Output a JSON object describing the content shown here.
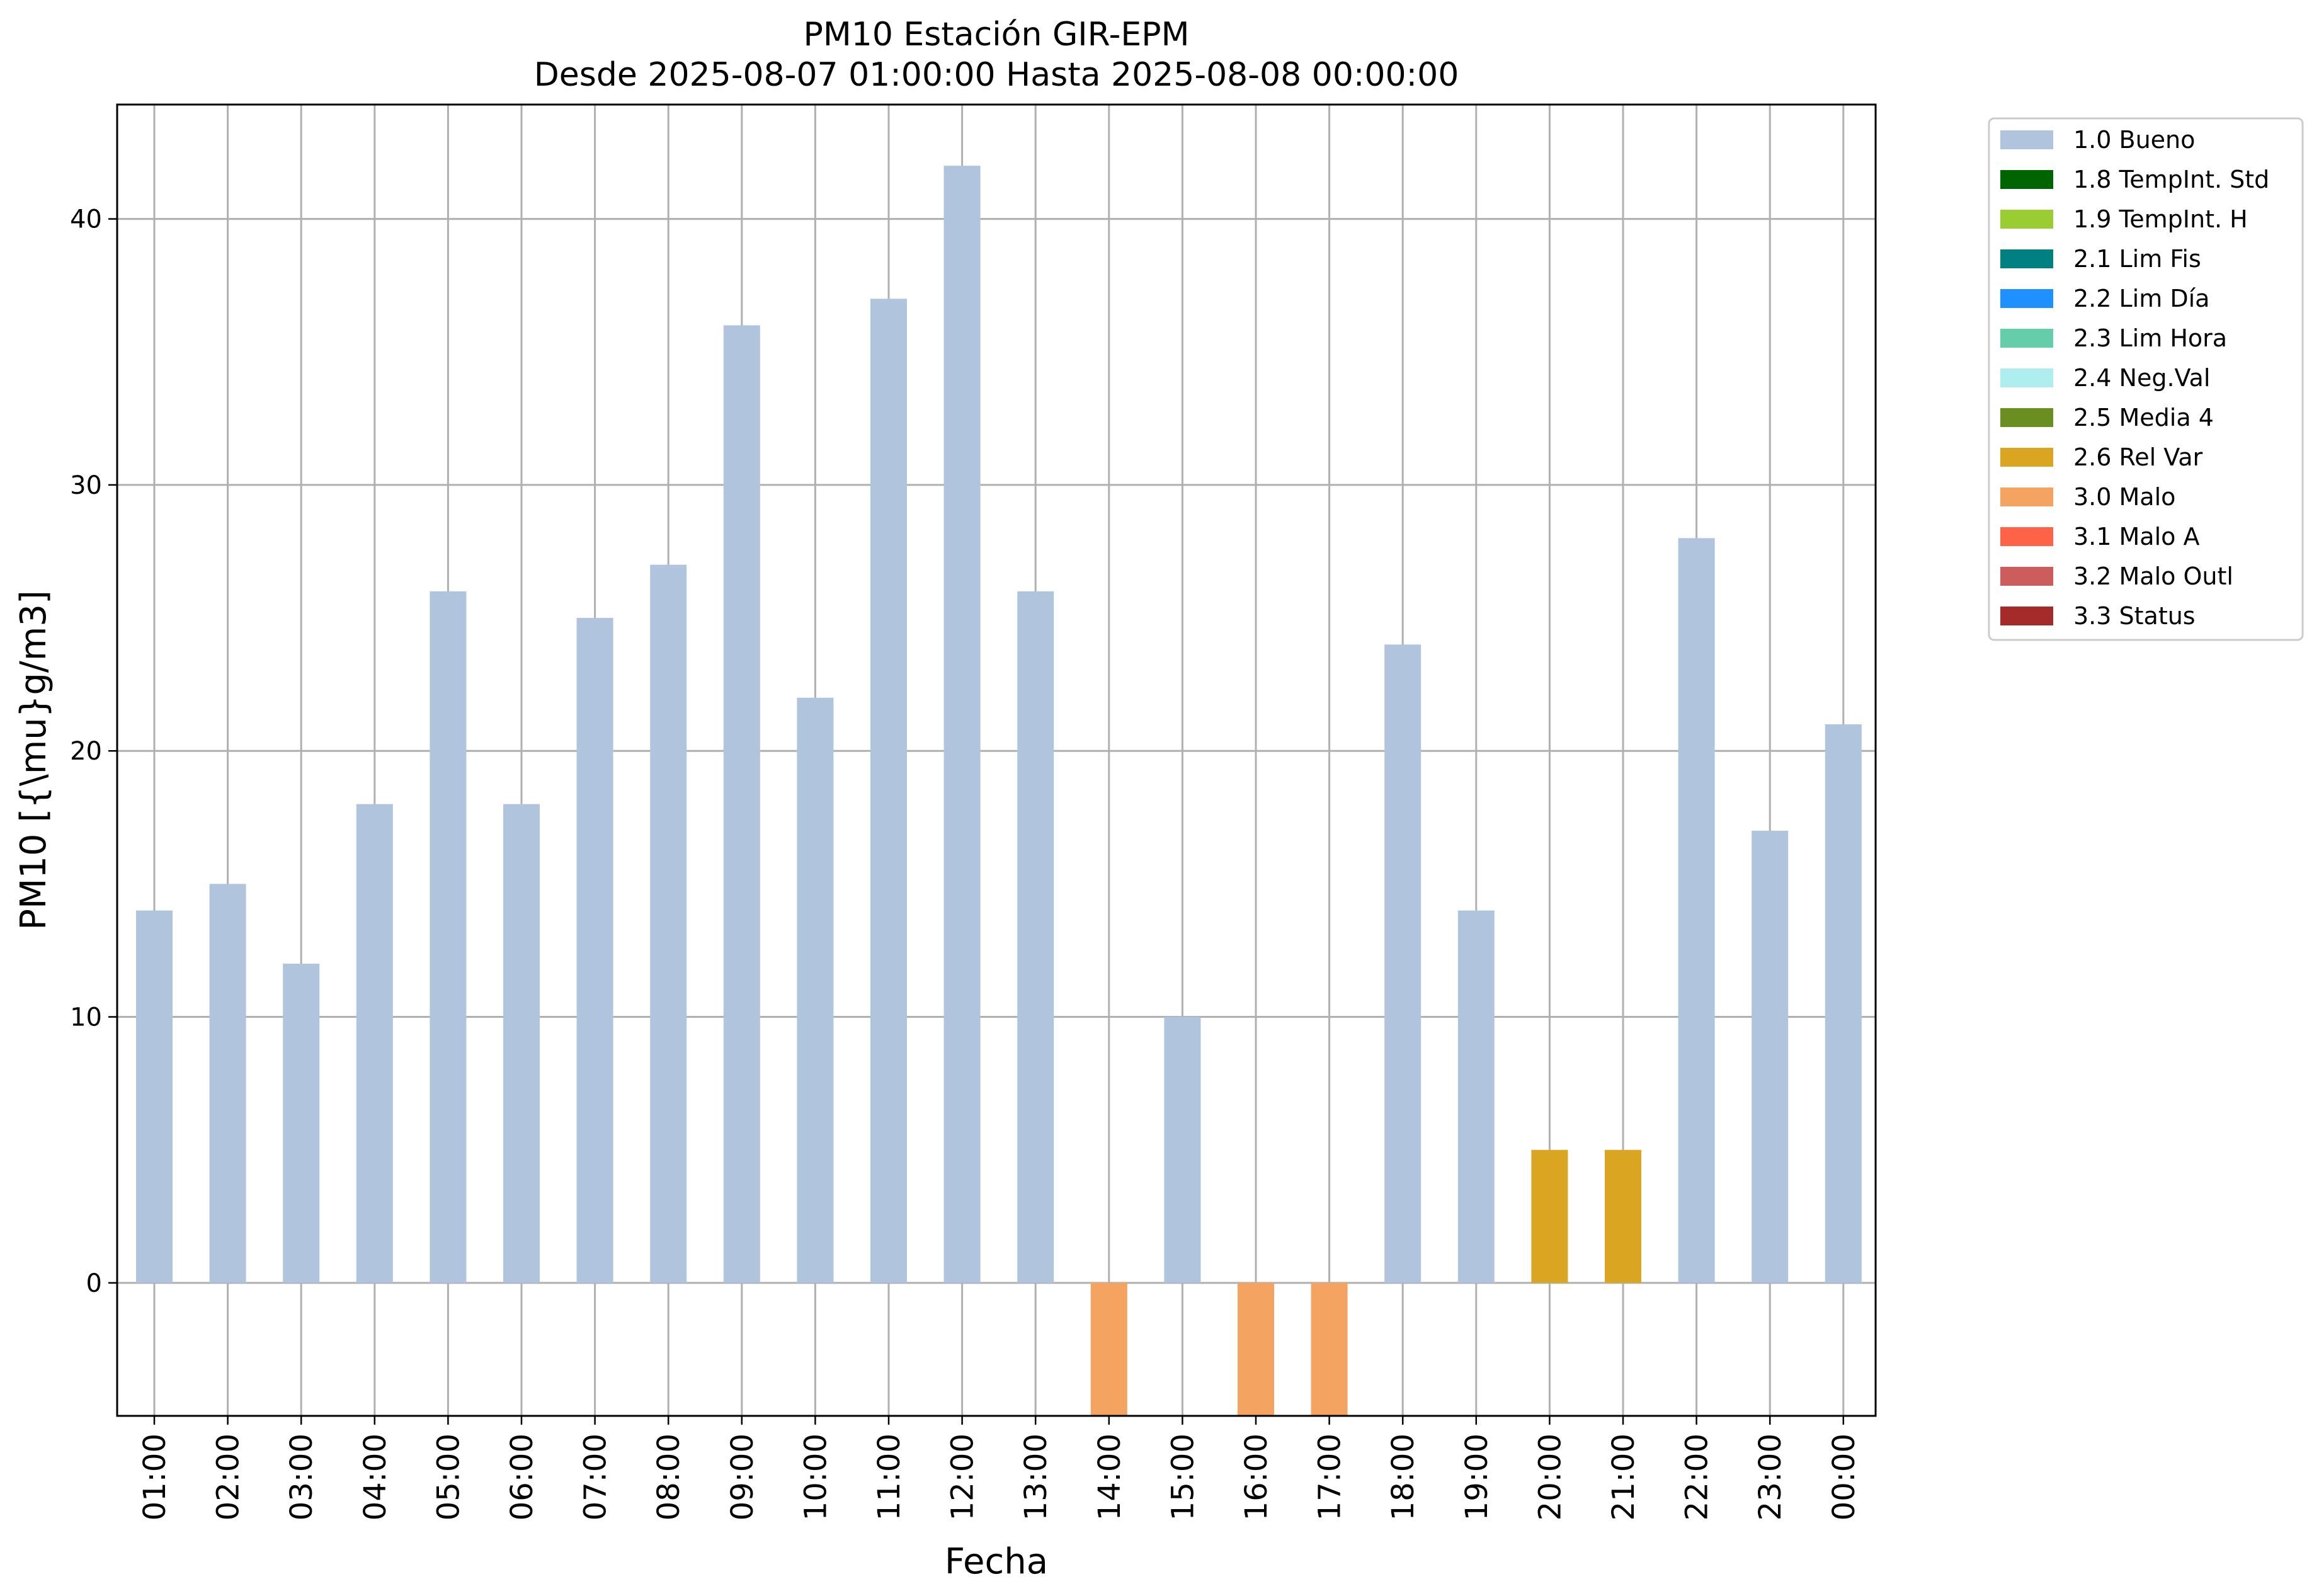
{
  "chart_data": {
    "type": "bar",
    "title": "PM10 Estación GIR-EPM",
    "subtitle": "Desde 2025-08-07 01:00:00 Hasta 2025-08-08 00:00:00",
    "xlabel": "Fecha",
    "ylabel": "PM10 [{\\mu}g/m3]",
    "ylim": [
      -5,
      44.3
    ],
    "yticks": [
      0,
      10,
      20,
      30,
      40
    ],
    "grid": true,
    "legend_position": "outside-top-right",
    "categories": [
      "01:00",
      "02:00",
      "03:00",
      "04:00",
      "05:00",
      "06:00",
      "07:00",
      "08:00",
      "09:00",
      "10:00",
      "11:00",
      "12:00",
      "13:00",
      "14:00",
      "15:00",
      "16:00",
      "17:00",
      "18:00",
      "19:00",
      "20:00",
      "21:00",
      "22:00",
      "23:00",
      "00:00"
    ],
    "values": [
      14,
      15,
      12,
      18,
      26,
      18,
      25,
      27,
      36,
      22,
      37,
      42,
      26,
      -5,
      10,
      -5,
      -5,
      24,
      14,
      5,
      5,
      28,
      17,
      21
    ],
    "flags": [
      "1.0 Bueno",
      "1.0 Bueno",
      "1.0 Bueno",
      "1.0 Bueno",
      "1.0 Bueno",
      "1.0 Bueno",
      "1.0 Bueno",
      "1.0 Bueno",
      "1.0 Bueno",
      "1.0 Bueno",
      "1.0 Bueno",
      "1.0 Bueno",
      "1.0 Bueno",
      "3.0 Malo",
      "1.0 Bueno",
      "3.0 Malo",
      "3.0 Malo",
      "1.0 Bueno",
      "1.0 Bueno",
      "2.6 Rel Var",
      "2.6 Rel Var",
      "1.0 Bueno",
      "1.0 Bueno",
      "1.0 Bueno"
    ],
    "legend": [
      {
        "label": "1.0 Bueno",
        "color": "#b0c4de"
      },
      {
        "label": "1.8 TempInt. Std",
        "color": "#006400"
      },
      {
        "label": "1.9 TempInt. H",
        "color": "#9acd32"
      },
      {
        "label": "2.1 Lim Fis",
        "color": "#008080"
      },
      {
        "label": "2.2 Lim Día",
        "color": "#1e90ff"
      },
      {
        "label": "2.3 Lim Hora",
        "color": "#66cdaa"
      },
      {
        "label": "2.4 Neg.Val",
        "color": "#afeeee"
      },
      {
        "label": "2.5 Media 4",
        "color": "#6b8e23"
      },
      {
        "label": "2.6 Rel Var",
        "color": "#daa520"
      },
      {
        "label": "3.0 Malo",
        "color": "#f4a460"
      },
      {
        "label": "3.1 Malo A",
        "color": "#ff6347"
      },
      {
        "label": "3.2 Malo Outl",
        "color": "#cd5c5c"
      },
      {
        "label": "3.3 Status",
        "color": "#a52a2a"
      }
    ]
  }
}
